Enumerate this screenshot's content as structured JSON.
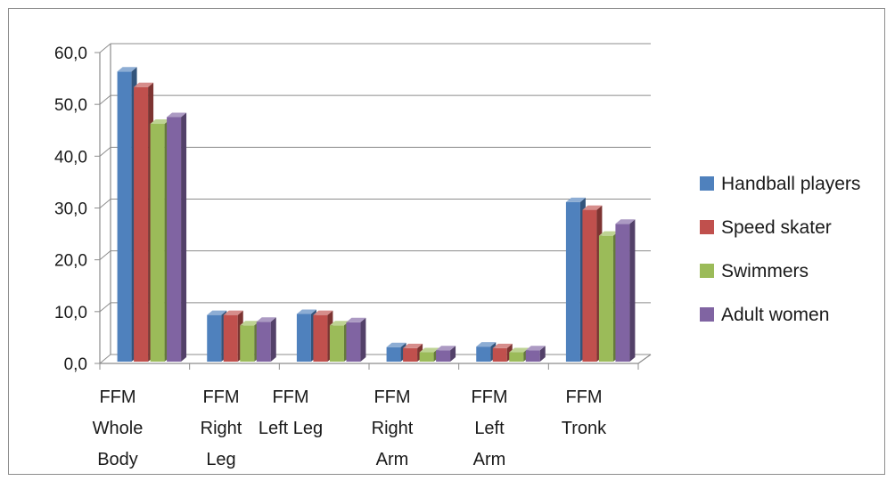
{
  "chart_data": {
    "type": "bar",
    "style": "3d-clustered-column",
    "categories": [
      [
        "FFM",
        "Whole",
        "Body"
      ],
      [
        "FFM",
        "Right",
        "Leg"
      ],
      [
        "FFM",
        "Left Leg"
      ],
      [
        "FFM",
        "Right",
        "Arm"
      ],
      [
        "FFM",
        "Left",
        "Arm"
      ],
      [
        "FFM",
        "Tronk"
      ]
    ],
    "series": [
      {
        "name": "Handball players",
        "color": "#4f81bd",
        "values": [
          56.0,
          9.0,
          9.2,
          2.8,
          2.9,
          30.8
        ]
      },
      {
        "name": "Speed skater",
        "color": "#c0504d",
        "values": [
          53.0,
          9.0,
          9.0,
          2.6,
          2.6,
          29.3
        ]
      },
      {
        "name": "Swimmers",
        "color": "#9bbb59",
        "values": [
          45.9,
          7.0,
          7.0,
          1.8,
          1.8,
          24.3
        ]
      },
      {
        "name": "Adult women",
        "color": "#8064a2",
        "values": [
          47.2,
          7.7,
          7.6,
          2.2,
          2.2,
          26.6
        ]
      }
    ],
    "y_ticks": [
      "0,0",
      "10,0",
      "20,0",
      "30,0",
      "40,0",
      "50,0",
      "60,0"
    ],
    "ylim": [
      0,
      60
    ],
    "grid": true,
    "legend_position": "right"
  }
}
